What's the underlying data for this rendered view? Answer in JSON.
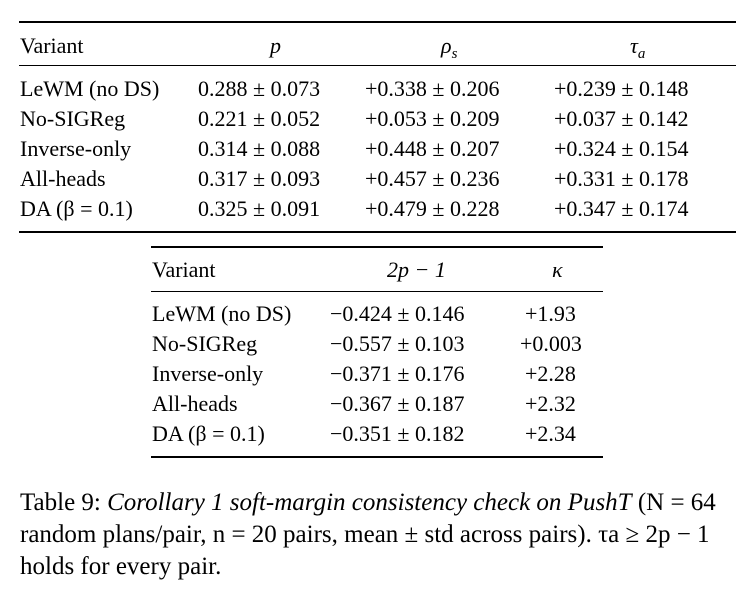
{
  "table1": {
    "headers": [
      "Variant",
      "p",
      "ρ",
      "τ"
    ],
    "header_subscripts": [
      "",
      "",
      "s",
      "a"
    ],
    "rows": [
      [
        "LeWM (no DS)",
        "0.288 ± 0.073",
        "+0.338 ± 0.206",
        "+0.239 ± 0.148"
      ],
      [
        "No-SIGReg",
        "0.221 ± 0.052",
        "+0.053 ± 0.209",
        "+0.037 ± 0.142"
      ],
      [
        "Inverse-only",
        "0.314 ± 0.088",
        "+0.448 ± 0.207",
        "+0.324 ± 0.154"
      ],
      [
        "All-heads",
        "0.317 ± 0.093",
        "+0.457 ± 0.236",
        "+0.331 ± 0.178"
      ],
      [
        "DA (β = 0.1)",
        "0.325 ± 0.091",
        "+0.479 ± 0.228",
        "+0.347 ± 0.174"
      ]
    ]
  },
  "table2": {
    "headers": [
      "Variant",
      "2p − 1",
      "κ"
    ],
    "rows": [
      [
        "LeWM (no DS)",
        "−0.424 ± 0.146",
        "+1.93"
      ],
      [
        "No-SIGReg",
        "−0.557 ± 0.103",
        "+0.003"
      ],
      [
        "Inverse-only",
        "−0.371 ± 0.176",
        "+2.28"
      ],
      [
        "All-heads",
        "−0.367 ± 0.187",
        "+2.32"
      ],
      [
        "DA (β = 0.1)",
        "−0.351 ± 0.182",
        "+2.34"
      ]
    ]
  },
  "caption": {
    "label": "Table 9: ",
    "title": "Corollary 1 soft-margin consistency check on PushT",
    "body": " (N = 64 random plans/pair, n = 20 pairs, mean ± std across pairs). τa ≥ 2p − 1 holds for every pair."
  }
}
